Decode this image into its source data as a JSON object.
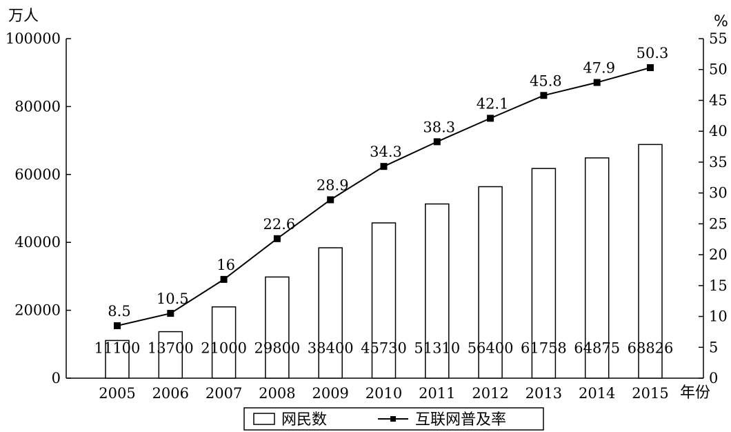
{
  "chart_data": {
    "type": "bar",
    "categories": [
      "2005",
      "2006",
      "2007",
      "2008",
      "2009",
      "2010",
      "2011",
      "2012",
      "2013",
      "2014",
      "2015"
    ],
    "xlabel": "年份",
    "ylabel_left": "万人",
    "ylabel_right": "%",
    "ylim_left": [
      0,
      100000
    ],
    "yticks_left": [
      0,
      20000,
      40000,
      60000,
      80000,
      100000
    ],
    "ylim_right": [
      0,
      55
    ],
    "yticks_right": [
      0,
      5,
      10,
      15,
      20,
      25,
      30,
      35,
      40,
      45,
      50,
      55
    ],
    "grid": false,
    "legend_placement": "bottom-center",
    "series": [
      {
        "name": "网民数",
        "type": "bar",
        "axis": "left",
        "values": [
          11100,
          13700,
          21000,
          29800,
          38400,
          45730,
          51310,
          56400,
          61758,
          64875,
          68826
        ],
        "labels": [
          "11100",
          "13700",
          "21000",
          "29800",
          "38400",
          "45730",
          "51310",
          "56400",
          "61758",
          "64875",
          "68826"
        ]
      },
      {
        "name": "互联网普及率",
        "type": "line",
        "axis": "right",
        "values": [
          8.5,
          10.5,
          16,
          22.6,
          28.9,
          34.3,
          38.3,
          42.1,
          45.8,
          47.9,
          50.3
        ],
        "labels": [
          "8.5",
          "10.5",
          "16",
          "22.6",
          "28.9",
          "34.3",
          "38.3",
          "42.1",
          "45.8",
          "47.9",
          "50.3"
        ]
      }
    ],
    "colors": {
      "bar_fill": "#ffffff",
      "stroke": "#000000",
      "marker": "#000000"
    }
  }
}
